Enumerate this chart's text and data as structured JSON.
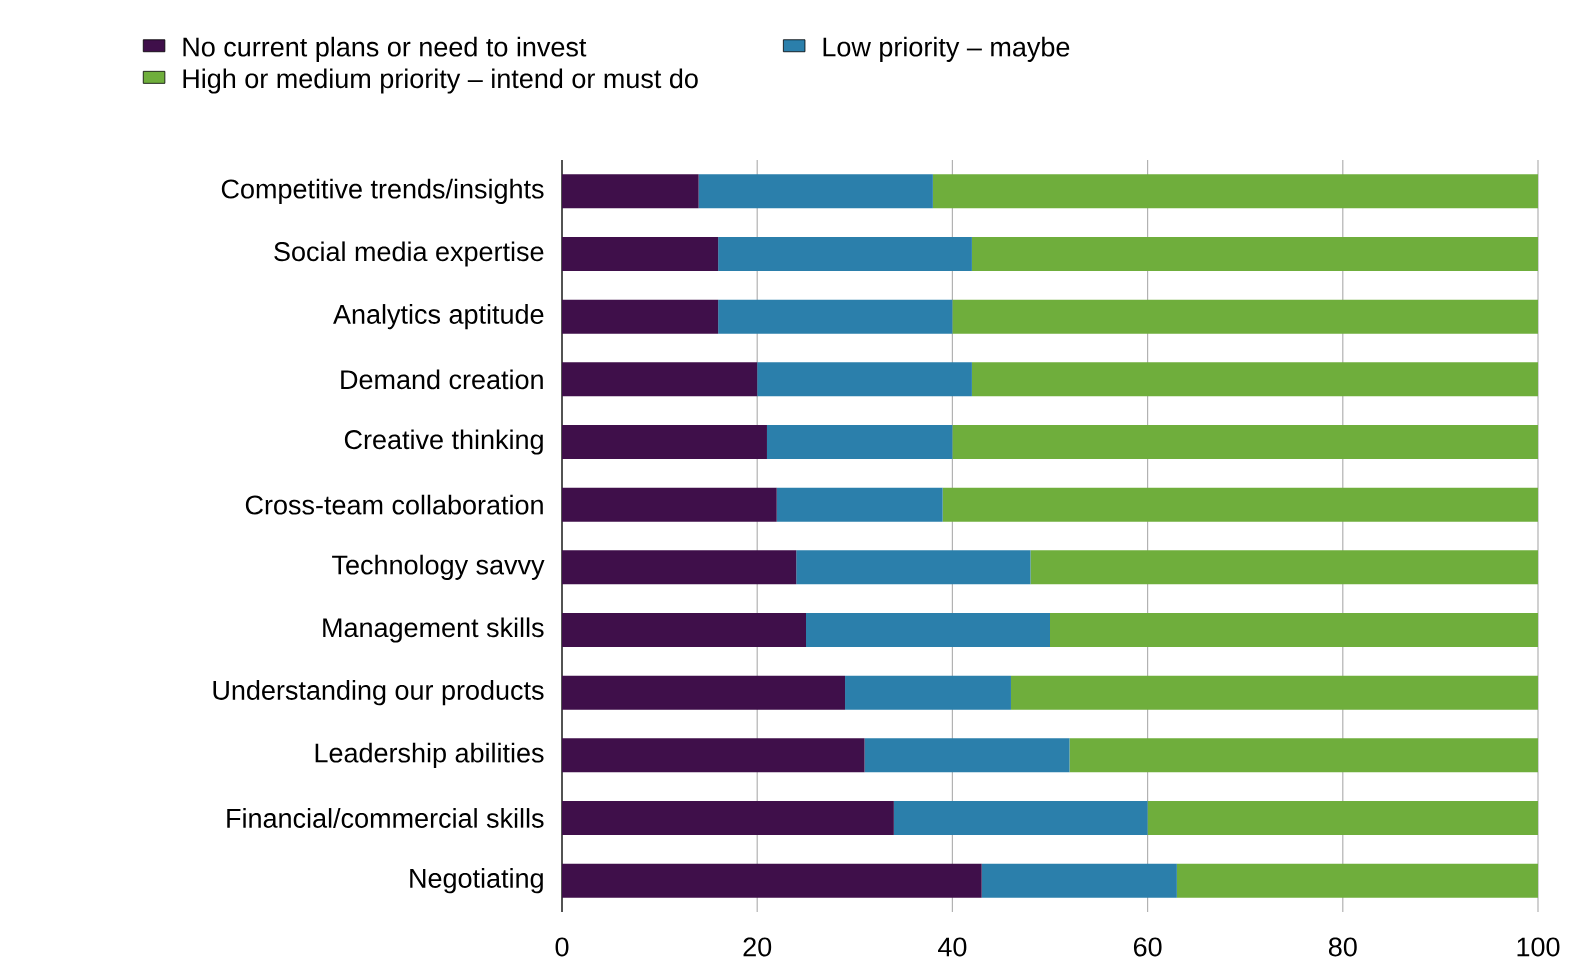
{
  "chart_data": {
    "type": "bar",
    "orientation": "horizontal",
    "stacked": true,
    "categories": [
      "Competitive trends/insights",
      "Social media expertise",
      "Analytics aptitude",
      "Demand creation",
      "Creative thinking",
      "Cross-team collaboration",
      "Technology savvy",
      "Management skills",
      "Understanding our products",
      "Leadership abilities",
      "Financial/commercial skills",
      "Negotiating"
    ],
    "series": [
      {
        "name": "No current plans or need to invest",
        "color": "#3f0f4a",
        "values": [
          14,
          16,
          16,
          20,
          21,
          22,
          24,
          25,
          29,
          31,
          34,
          43
        ]
      },
      {
        "name": "Low priority – maybe",
        "color": "#2b7fab",
        "values": [
          24,
          26,
          24,
          22,
          19,
          17,
          24,
          25,
          17,
          21,
          26,
          20
        ]
      },
      {
        "name": "High or medium priority – intend or must do",
        "color": "#6fae3c",
        "values": [
          62,
          58,
          60,
          58,
          60,
          61,
          52,
          50,
          54,
          48,
          40,
          37
        ]
      }
    ],
    "xlim": [
      0,
      100
    ],
    "xticks": [
      0,
      20,
      40,
      60,
      80,
      100
    ],
    "grid": "x",
    "legend": "top"
  }
}
